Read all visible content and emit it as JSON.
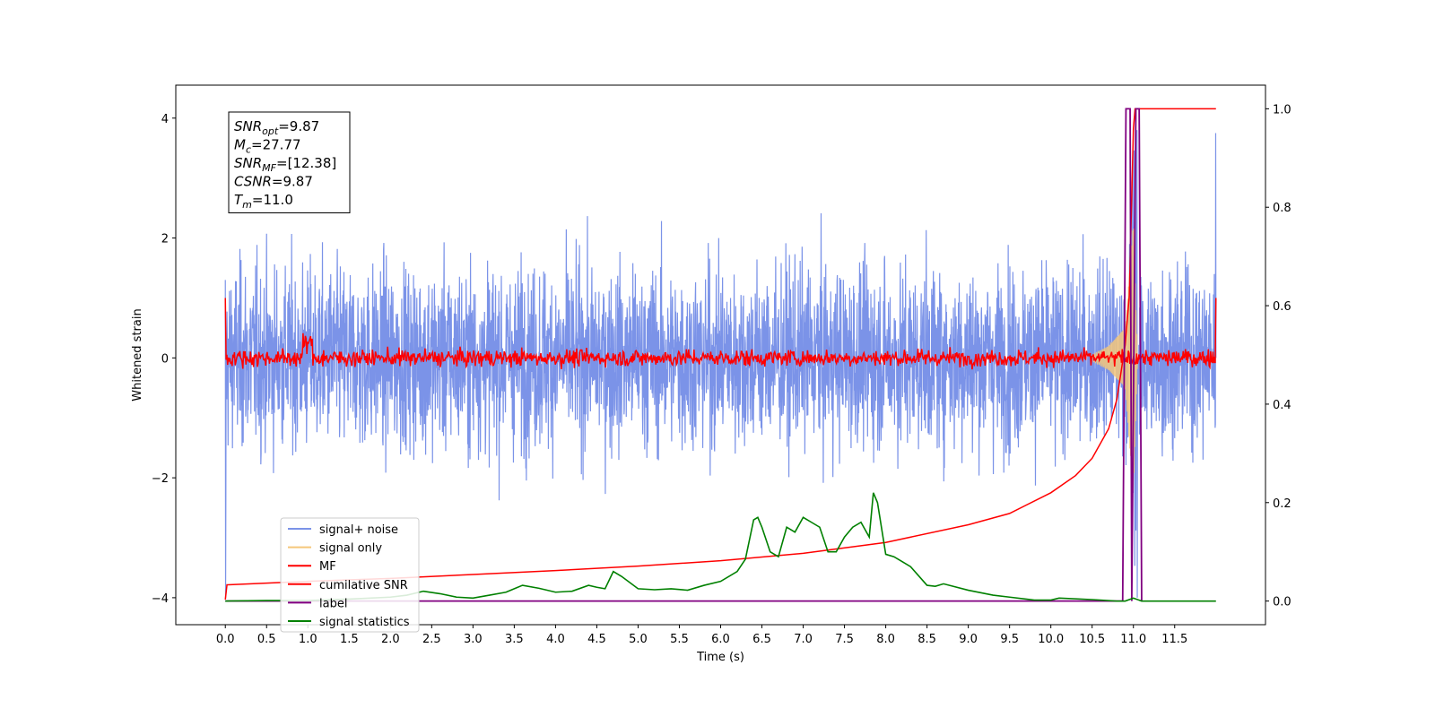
{
  "chart_data": {
    "type": "line",
    "xlabel": "Time (s)",
    "ylabel": "Whitened strain",
    "xlim": [
      -0.6,
      12.6
    ],
    "ylim": [
      -4.45,
      4.55
    ],
    "y2lim": [
      -0.048,
      1.048
    ],
    "x_ticks": [
      "0.0",
      "0.5",
      "1.0",
      "1.5",
      "2.0",
      "2.5",
      "3.0",
      "3.5",
      "4.0",
      "4.5",
      "5.0",
      "5.5",
      "6.0",
      "6.5",
      "7.0",
      "7.5",
      "8.0",
      "8.5",
      "9.0",
      "9.5",
      "10.0",
      "10.5",
      "11.0",
      "11.5"
    ],
    "y_ticks": [
      "−4",
      "−2",
      "0",
      "2",
      "4"
    ],
    "y2_ticks": [
      "0.0",
      "0.2",
      "0.4",
      "0.6",
      "0.8",
      "1.0"
    ],
    "grid": false,
    "legend_position": "lower-left",
    "annotation": {
      "lines": [
        {
          "sym": "SNR",
          "sub": "opt",
          "value": "=9.87"
        },
        {
          "sym": "M",
          "sub": "c",
          "value": "=27.77"
        },
        {
          "sym": "SNR",
          "sub": "MF",
          "value": "=[12.38]"
        },
        {
          "sym": "CSNR",
          "sub": "",
          "value": "=9.87"
        },
        {
          "sym": "T",
          "sub": "m",
          "value": "=11.0"
        }
      ]
    },
    "series": [
      {
        "name": "signal+ noise",
        "axis": "left",
        "color": "#7b93e8",
        "description_of_values": "dense noise between about -2.5 and 2.5, peak 3.75 at x=12.0, dip -2.4 near x=11.0",
        "x_range": [
          0.0,
          12.0
        ],
        "amplitude": 0.75,
        "points": 3600
      },
      {
        "name": "signal only",
        "axis": "left",
        "color": "#f5c77a",
        "x": [
          10.5,
          10.7,
          10.9,
          11.0,
          11.05
        ],
        "envelope": [
          0.05,
          0.2,
          0.5,
          2.3,
          0.0
        ]
      },
      {
        "name": "MF",
        "axis": "left",
        "color": "#ff0000",
        "x_range": [
          0.0,
          12.0
        ],
        "points": 1300,
        "baseline": 0.0,
        "amplitude": 0.07,
        "start_value": 1.0,
        "end_value": 1.0,
        "bump_x": 1.0,
        "bump_value": 0.35
      },
      {
        "name": "cumilative SNR",
        "axis": "right",
        "color": "#ff0000",
        "x": [
          0.0,
          0.02,
          1.0,
          2.0,
          3.0,
          4.0,
          5.0,
          6.0,
          7.0,
          8.0,
          9.0,
          9.5,
          10.0,
          10.3,
          10.5,
          10.7,
          10.8,
          10.9,
          10.95,
          11.0,
          11.02,
          12.0
        ],
        "y": [
          0.003,
          0.033,
          0.04,
          0.046,
          0.054,
          0.062,
          0.071,
          0.082,
          0.097,
          0.119,
          0.155,
          0.178,
          0.22,
          0.255,
          0.29,
          0.35,
          0.41,
          0.52,
          0.62,
          0.96,
          1.0,
          1.0
        ]
      },
      {
        "name": "label",
        "axis": "right",
        "color": "#800080",
        "x": [
          0.0,
          10.87,
          10.91,
          10.96,
          10.98,
          11.03,
          11.07,
          11.1
        ],
        "y": [
          0.0,
          0.0,
          1.0,
          1.0,
          0.0,
          1.0,
          1.0,
          0.0
        ]
      },
      {
        "name": "signal statistics",
        "axis": "right",
        "color": "#008000",
        "x": [
          0.0,
          0.5,
          1.0,
          1.5,
          2.0,
          2.2,
          2.4,
          2.6,
          2.8,
          3.0,
          3.2,
          3.4,
          3.5,
          3.6,
          3.8,
          4.0,
          4.2,
          4.4,
          4.5,
          4.6,
          4.7,
          4.8,
          5.0,
          5.2,
          5.4,
          5.6,
          5.8,
          6.0,
          6.2,
          6.3,
          6.4,
          6.45,
          6.5,
          6.6,
          6.7,
          6.8,
          6.9,
          7.0,
          7.1,
          7.2,
          7.3,
          7.4,
          7.5,
          7.6,
          7.7,
          7.8,
          7.85,
          7.9,
          8.0,
          8.1,
          8.2,
          8.3,
          8.5,
          8.6,
          8.7,
          9.0,
          9.3,
          9.5,
          9.8,
          10.0,
          10.1,
          10.5,
          10.8,
          10.9,
          11.0,
          11.1,
          11.5,
          12.0
        ],
        "y": [
          0.0,
          0.001,
          0.001,
          0.004,
          0.008,
          0.012,
          0.02,
          0.015,
          0.008,
          0.006,
          0.012,
          0.018,
          0.025,
          0.032,
          0.026,
          0.018,
          0.02,
          0.032,
          0.028,
          0.025,
          0.06,
          0.05,
          0.025,
          0.023,
          0.025,
          0.022,
          0.032,
          0.04,
          0.06,
          0.085,
          0.165,
          0.17,
          0.15,
          0.1,
          0.09,
          0.15,
          0.14,
          0.17,
          0.16,
          0.15,
          0.1,
          0.1,
          0.13,
          0.15,
          0.16,
          0.13,
          0.22,
          0.2,
          0.095,
          0.09,
          0.08,
          0.07,
          0.032,
          0.03,
          0.035,
          0.022,
          0.012,
          0.008,
          0.002,
          0.002,
          0.006,
          0.003,
          0.0,
          0.0,
          0.006,
          0.0,
          0.0,
          0.0
        ]
      }
    ]
  }
}
